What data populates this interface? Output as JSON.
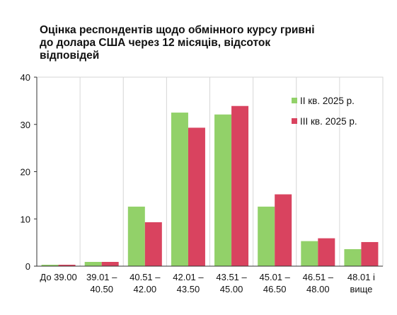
{
  "chart_data": {
    "type": "bar",
    "title_lines": [
      "Оцінка респондентів щодо обмінного курсу гривні",
      "до долара США через 12 місяців, відсоток",
      "відповідей"
    ],
    "categories": [
      [
        "До 39.00"
      ],
      [
        "39.01 –",
        "40.50"
      ],
      [
        "40.51 –",
        "42.00"
      ],
      [
        "42.01 –",
        "43.50"
      ],
      [
        "43.51 –",
        "45.00"
      ],
      [
        "45.01 –",
        "46.50"
      ],
      [
        "46.51 –",
        "48.00"
      ],
      [
        "48.01 і",
        "вище"
      ]
    ],
    "series": [
      {
        "name": "ІІ кв. 2025 р.",
        "color": "#92d169",
        "values": [
          0.3,
          0.9,
          12.6,
          32.5,
          32.1,
          12.6,
          5.3,
          3.6
        ]
      },
      {
        "name": "ІІІ кв. 2025 р.",
        "color": "#d9435f",
        "values": [
          0.3,
          0.9,
          9.3,
          29.3,
          33.9,
          15.2,
          5.9,
          5.1
        ]
      }
    ],
    "yticks": [
      "0",
      "10",
      "20",
      "30",
      "40"
    ],
    "ylim": [
      0,
      40
    ],
    "grid": "vertical separators between categories",
    "legend_position": "top-right"
  }
}
